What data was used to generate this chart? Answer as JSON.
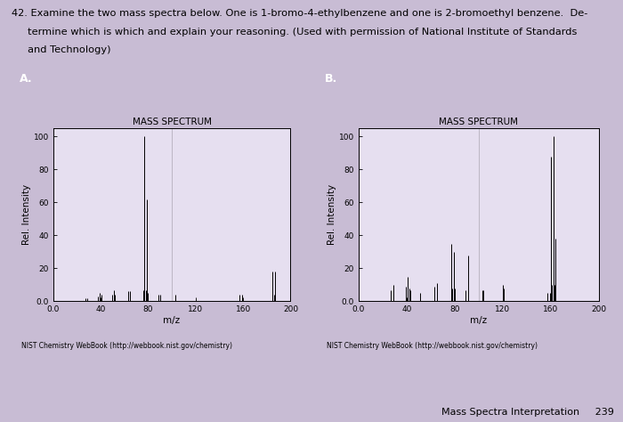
{
  "title_line1": "42. Examine the two mass spectra below. One is 1-bromo-4-ethylbenzene and one is 2-bromoethyl benzene.  De-",
  "title_line2": "     termine which is which and explain your reasoning. (Used with permission of National Institute of Standards",
  "title_line3": "     and Technology)",
  "footer_text": "Mass Spectra Interpretation     239",
  "spectrumA": {
    "label": "A.",
    "title": "MASS SPECTRUM",
    "xlabel": "m/z",
    "ylabel": "Rel. Intensity",
    "xlim": [
      0,
      200
    ],
    "ylim": [
      0.0,
      105
    ],
    "xticks": [
      0.0,
      40,
      80,
      120,
      160,
      200
    ],
    "xticklabels": [
      "0.0",
      "40",
      "80",
      "120",
      "160",
      "200"
    ],
    "yticks": [
      0.0,
      20,
      40,
      60,
      80,
      100
    ],
    "yticklabels": [
      "0.0",
      "20",
      "40",
      "60",
      "80",
      "100"
    ],
    "peaks": [
      [
        27,
        2
      ],
      [
        29,
        2
      ],
      [
        38,
        3
      ],
      [
        39,
        5
      ],
      [
        41,
        4
      ],
      [
        50,
        4
      ],
      [
        51,
        7
      ],
      [
        52,
        4
      ],
      [
        63,
        6
      ],
      [
        65,
        6
      ],
      [
        76,
        7
      ],
      [
        77,
        100
      ],
      [
        78,
        7
      ],
      [
        79,
        62
      ],
      [
        80,
        5
      ],
      [
        89,
        4
      ],
      [
        90,
        4
      ],
      [
        103,
        4
      ],
      [
        157,
        4
      ],
      [
        159,
        4
      ],
      [
        185,
        18
      ],
      [
        186,
        4
      ],
      [
        187,
        18
      ]
    ],
    "source": "NIST Chemistry WebBook (http://webbook.nist.gov/chemistry)"
  },
  "spectrumB": {
    "label": "B.",
    "title": "MASS SPECTRUM",
    "xlabel": "m/z",
    "ylabel": "Rel. Intensity",
    "xlim": [
      0,
      200
    ],
    "ylim": [
      0.0,
      105
    ],
    "xticks": [
      0.0,
      40,
      80,
      120,
      160,
      200
    ],
    "xticklabels": [
      "0.0",
      "40",
      "80",
      "120",
      "160",
      "200"
    ],
    "yticks": [
      0.0,
      20,
      40,
      60,
      80,
      100
    ],
    "yticklabels": [
      "0.0",
      "20",
      "40",
      "60",
      "80",
      "100"
    ],
    "peaks": [
      [
        27,
        7
      ],
      [
        29,
        10
      ],
      [
        39,
        9
      ],
      [
        41,
        15
      ],
      [
        42,
        8
      ],
      [
        43,
        7
      ],
      [
        51,
        5
      ],
      [
        63,
        9
      ],
      [
        65,
        11
      ],
      [
        77,
        35
      ],
      [
        78,
        8
      ],
      [
        79,
        30
      ],
      [
        80,
        8
      ],
      [
        89,
        7
      ],
      [
        91,
        28
      ],
      [
        103,
        7
      ],
      [
        104,
        7
      ],
      [
        120,
        10
      ],
      [
        121,
        8
      ],
      [
        157,
        5
      ],
      [
        159,
        5
      ],
      [
        160,
        88
      ],
      [
        161,
        10
      ],
      [
        162,
        100
      ],
      [
        163,
        10
      ],
      [
        164,
        38
      ]
    ],
    "source": "NIST Chemistry WebBook (http://webbook.nist.gov/chemistry)"
  },
  "bg_color": "#c8bcd4",
  "header_bg": "#1c1c1c",
  "plot_bg": "#e6dff0",
  "bar_color": "black",
  "header_text_color": "white",
  "border_color": "#888888"
}
